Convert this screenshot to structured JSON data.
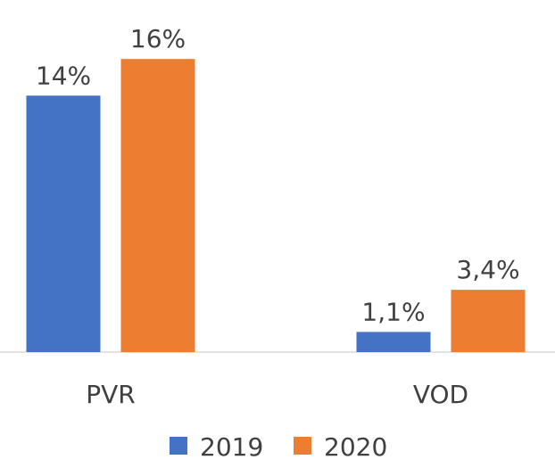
{
  "chart_data": {
    "type": "bar",
    "title": "",
    "xlabel": "",
    "ylabel": "",
    "categories": [
      "PVR",
      "VOD"
    ],
    "series": [
      {
        "name": "2019",
        "color": "#4472C4",
        "values": [
          14,
          1.1
        ],
        "labels": [
          "14%",
          "1,1%"
        ]
      },
      {
        "name": "2020",
        "color": "#ED7D31",
        "values": [
          16,
          3.4
        ],
        "labels": [
          "16%",
          "3,4%"
        ]
      }
    ],
    "unit": "%",
    "ylim": [
      0,
      16.3
    ],
    "grid": false,
    "legend": "bottom",
    "axis_color": "#D9D9D9",
    "text_color": "#404040"
  }
}
